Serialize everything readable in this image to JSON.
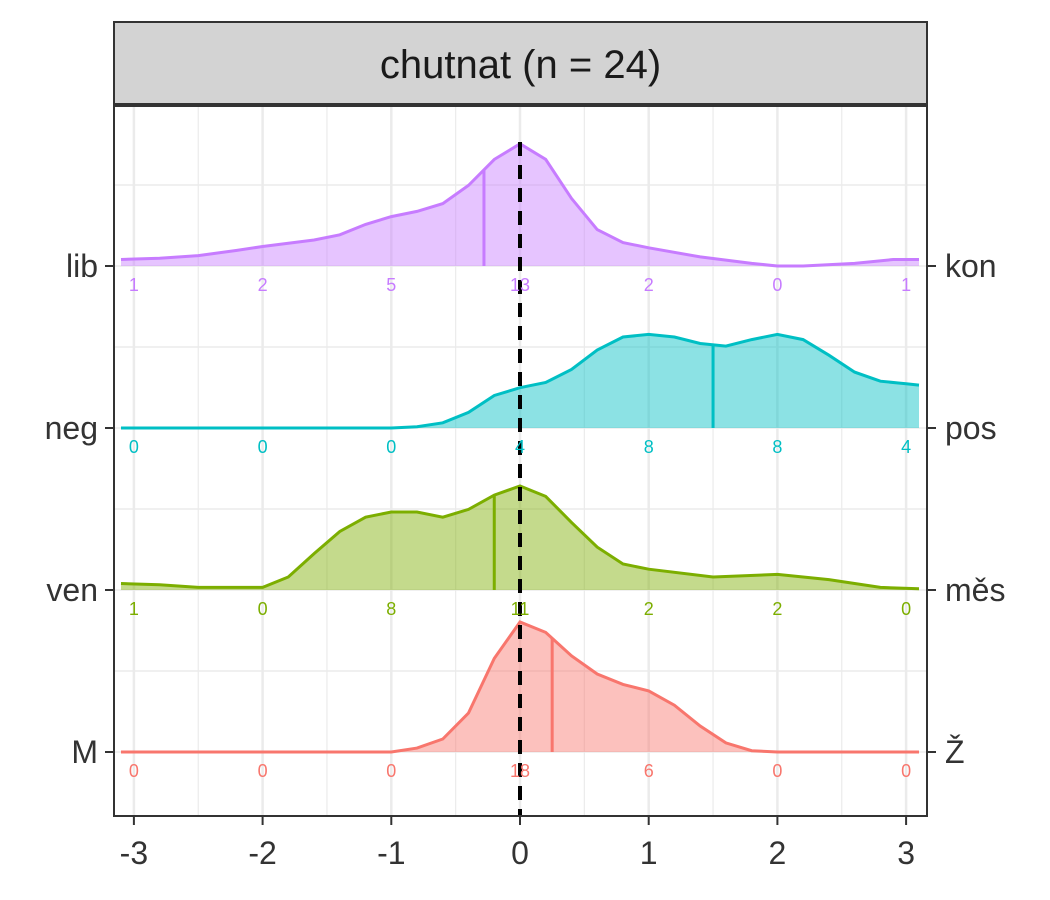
{
  "chart_data": {
    "type": "ridgeline",
    "title": "chutnat (n = 24)",
    "xlim": [
      -3,
      3
    ],
    "x_ticks": [
      "-3",
      "-2",
      "-1",
      "0",
      "1",
      "2",
      "3"
    ],
    "reference_line_x": 0,
    "grid": true,
    "count_positions": [
      -3,
      -2,
      -1,
      0,
      1,
      2,
      3
    ],
    "series": [
      {
        "left_label": "M",
        "right_label": "Ž",
        "color": "#f8766d",
        "counts": [
          0,
          0,
          0,
          18,
          6,
          0,
          0
        ],
        "mean": 0.25,
        "density": [
          [
            -3.1,
            0
          ],
          [
            -1,
            0
          ],
          [
            -0.8,
            0.03
          ],
          [
            -0.6,
            0.1
          ],
          [
            -0.4,
            0.3
          ],
          [
            -0.2,
            0.72
          ],
          [
            0,
            1.0
          ],
          [
            0.2,
            0.92
          ],
          [
            0.4,
            0.74
          ],
          [
            0.6,
            0.6
          ],
          [
            0.8,
            0.52
          ],
          [
            1.0,
            0.47
          ],
          [
            1.2,
            0.36
          ],
          [
            1.4,
            0.2
          ],
          [
            1.6,
            0.07
          ],
          [
            1.8,
            0.01
          ],
          [
            2.0,
            0
          ],
          [
            3.1,
            0
          ]
        ]
      },
      {
        "left_label": "ven",
        "right_label": "měs",
        "color": "#7cae00",
        "counts": [
          1,
          0,
          8,
          11,
          2,
          2,
          0
        ],
        "mean": -0.2,
        "density": [
          [
            -3.1,
            0.05
          ],
          [
            -2.8,
            0.04
          ],
          [
            -2.5,
            0.02
          ],
          [
            -2.0,
            0.02
          ],
          [
            -1.8,
            0.1
          ],
          [
            -1.6,
            0.28
          ],
          [
            -1.4,
            0.45
          ],
          [
            -1.2,
            0.56
          ],
          [
            -1.0,
            0.6
          ],
          [
            -0.8,
            0.6
          ],
          [
            -0.6,
            0.56
          ],
          [
            -0.4,
            0.62
          ],
          [
            -0.2,
            0.73
          ],
          [
            0,
            0.8
          ],
          [
            0.2,
            0.72
          ],
          [
            0.4,
            0.52
          ],
          [
            0.6,
            0.33
          ],
          [
            0.8,
            0.2
          ],
          [
            1.0,
            0.16
          ],
          [
            1.5,
            0.1
          ],
          [
            2.0,
            0.12
          ],
          [
            2.4,
            0.08
          ],
          [
            2.8,
            0.02
          ],
          [
            3.1,
            0.01
          ]
        ]
      },
      {
        "left_label": "neg",
        "right_label": "pos",
        "color": "#00bfc4",
        "counts": [
          0,
          0,
          0,
          4,
          8,
          8,
          4
        ],
        "mean": 1.5,
        "density": [
          [
            -3.1,
            0
          ],
          [
            -1.0,
            0
          ],
          [
            -0.8,
            0.01
          ],
          [
            -0.6,
            0.04
          ],
          [
            -0.4,
            0.12
          ],
          [
            -0.2,
            0.25
          ],
          [
            0,
            0.31
          ],
          [
            0.2,
            0.35
          ],
          [
            0.4,
            0.45
          ],
          [
            0.6,
            0.6
          ],
          [
            0.8,
            0.7
          ],
          [
            1.0,
            0.72
          ],
          [
            1.2,
            0.7
          ],
          [
            1.4,
            0.65
          ],
          [
            1.6,
            0.63
          ],
          [
            1.8,
            0.68
          ],
          [
            2.0,
            0.72
          ],
          [
            2.2,
            0.68
          ],
          [
            2.4,
            0.56
          ],
          [
            2.6,
            0.43
          ],
          [
            2.8,
            0.36
          ],
          [
            3.0,
            0.34
          ],
          [
            3.1,
            0.33
          ]
        ]
      },
      {
        "left_label": "lib",
        "right_label": "kon",
        "color": "#c77cff",
        "counts": [
          1,
          2,
          5,
          13,
          2,
          0,
          1
        ],
        "mean": -0.28,
        "density": [
          [
            -3.1,
            0.05
          ],
          [
            -2.8,
            0.06
          ],
          [
            -2.5,
            0.08
          ],
          [
            -2.2,
            0.12
          ],
          [
            -2.0,
            0.15
          ],
          [
            -1.6,
            0.2
          ],
          [
            -1.4,
            0.24
          ],
          [
            -1.2,
            0.32
          ],
          [
            -1.0,
            0.38
          ],
          [
            -0.8,
            0.42
          ],
          [
            -0.6,
            0.48
          ],
          [
            -0.4,
            0.62
          ],
          [
            -0.2,
            0.82
          ],
          [
            0,
            0.94
          ],
          [
            0.2,
            0.82
          ],
          [
            0.4,
            0.52
          ],
          [
            0.6,
            0.28
          ],
          [
            0.8,
            0.18
          ],
          [
            1.0,
            0.14
          ],
          [
            1.4,
            0.07
          ],
          [
            1.8,
            0.02
          ],
          [
            2.0,
            0
          ],
          [
            2.2,
            0
          ],
          [
            2.6,
            0.02
          ],
          [
            2.9,
            0.05
          ],
          [
            3.1,
            0.05
          ]
        ]
      }
    ]
  }
}
